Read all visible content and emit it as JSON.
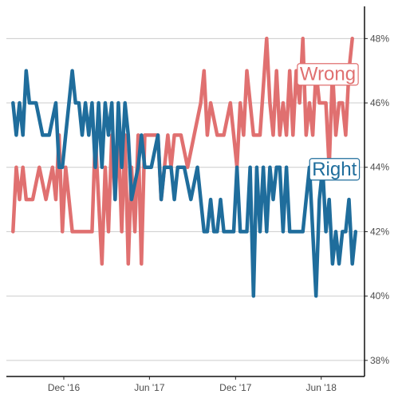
{
  "chart_data": {
    "type": "line",
    "y_axis_position": "right",
    "ylim": [
      37.5,
      49
    ],
    "y_ticks": [
      {
        "value": 38,
        "label": "38%"
      },
      {
        "value": 40,
        "label": "40%"
      },
      {
        "value": 42,
        "label": "42%"
      },
      {
        "value": 44,
        "label": "44%"
      },
      {
        "value": 46,
        "label": "46%"
      },
      {
        "value": 48,
        "label": "48%"
      }
    ],
    "x_range": [
      "2016-08-01",
      "2018-09-01"
    ],
    "x_ticks": [
      {
        "date": "2016-12-01",
        "label": "Dec '16"
      },
      {
        "date": "2017-06-01",
        "label": "Jun '17"
      },
      {
        "date": "2017-12-01",
        "label": "Dec '17"
      },
      {
        "date": "2018-06-01",
        "label": "Jun '18"
      }
    ],
    "grid": "horizontal",
    "legend": "direct labels",
    "series": [
      {
        "name": "Wrong",
        "color": "#e07070",
        "label_date": "2018-06-15",
        "label_value": 46.9,
        "points": [
          [
            "2016-08-15",
            42
          ],
          [
            "2016-08-22",
            44
          ],
          [
            "2016-08-29",
            43
          ],
          [
            "2016-09-05",
            44
          ],
          [
            "2016-09-12",
            43
          ],
          [
            "2016-09-26",
            43
          ],
          [
            "2016-10-10",
            44
          ],
          [
            "2016-10-24",
            43
          ],
          [
            "2016-11-07",
            44
          ],
          [
            "2016-11-14",
            43
          ],
          [
            "2016-11-21",
            45
          ],
          [
            "2016-11-28",
            42
          ],
          [
            "2016-12-05",
            44
          ],
          [
            "2016-12-12",
            43
          ],
          [
            "2016-12-19",
            42
          ],
          [
            "2017-01-02",
            42
          ],
          [
            "2017-01-16",
            42
          ],
          [
            "2017-01-30",
            42
          ],
          [
            "2017-02-06",
            45
          ],
          [
            "2017-02-13",
            43
          ],
          [
            "2017-02-20",
            41
          ],
          [
            "2017-02-27",
            44
          ],
          [
            "2017-03-06",
            42
          ],
          [
            "2017-03-13",
            45
          ],
          [
            "2017-03-20",
            43
          ],
          [
            "2017-03-27",
            45
          ],
          [
            "2017-04-03",
            42
          ],
          [
            "2017-04-10",
            45
          ],
          [
            "2017-04-17",
            41
          ],
          [
            "2017-04-24",
            44
          ],
          [
            "2017-05-01",
            42
          ],
          [
            "2017-05-08",
            45
          ],
          [
            "2017-05-15",
            41
          ],
          [
            "2017-05-22",
            45
          ],
          [
            "2017-06-05",
            45
          ],
          [
            "2017-06-19",
            45
          ],
          [
            "2017-06-26",
            43
          ],
          [
            "2017-07-03",
            44
          ],
          [
            "2017-07-10",
            45
          ],
          [
            "2017-07-17",
            44
          ],
          [
            "2017-07-24",
            45
          ],
          [
            "2017-08-07",
            45
          ],
          [
            "2017-08-21",
            44
          ],
          [
            "2017-09-04",
            45
          ],
          [
            "2017-09-18",
            46
          ],
          [
            "2017-09-25",
            47
          ],
          [
            "2017-10-02",
            45
          ],
          [
            "2017-10-09",
            46
          ],
          [
            "2017-10-23",
            45
          ],
          [
            "2017-11-06",
            45
          ],
          [
            "2017-11-20",
            46
          ],
          [
            "2017-11-27",
            45
          ],
          [
            "2017-12-04",
            44
          ],
          [
            "2017-12-11",
            46
          ],
          [
            "2017-12-18",
            45
          ],
          [
            "2017-12-25",
            47
          ],
          [
            "2018-01-08",
            45
          ],
          [
            "2018-01-22",
            45
          ],
          [
            "2018-02-05",
            48
          ],
          [
            "2018-02-12",
            46
          ],
          [
            "2018-02-19",
            45
          ],
          [
            "2018-02-26",
            47
          ],
          [
            "2018-03-05",
            45
          ],
          [
            "2018-03-12",
            46
          ],
          [
            "2018-03-19",
            45
          ],
          [
            "2018-03-26",
            47
          ],
          [
            "2018-04-02",
            45
          ],
          [
            "2018-04-09",
            47
          ],
          [
            "2018-04-16",
            46
          ],
          [
            "2018-04-23",
            48
          ],
          [
            "2018-04-30",
            45
          ],
          [
            "2018-05-07",
            46
          ],
          [
            "2018-05-14",
            45
          ],
          [
            "2018-05-21",
            47
          ],
          [
            "2018-05-28",
            46
          ],
          [
            "2018-06-11",
            46
          ],
          [
            "2018-06-18",
            44
          ],
          [
            "2018-06-25",
            47
          ],
          [
            "2018-07-02",
            45
          ],
          [
            "2018-07-09",
            46
          ],
          [
            "2018-07-16",
            46
          ],
          [
            "2018-07-23",
            45
          ],
          [
            "2018-07-30",
            47
          ],
          [
            "2018-08-06",
            48
          ]
        ]
      },
      {
        "name": "Right",
        "color": "#1f6d9c",
        "label_date": "2018-06-29",
        "label_value": 43.95,
        "points": [
          [
            "2016-08-15",
            46
          ],
          [
            "2016-08-22",
            45
          ],
          [
            "2016-08-29",
            46
          ],
          [
            "2016-09-05",
            45
          ],
          [
            "2016-09-12",
            47
          ],
          [
            "2016-09-19",
            46
          ],
          [
            "2016-10-03",
            46
          ],
          [
            "2016-10-17",
            45
          ],
          [
            "2016-10-31",
            45
          ],
          [
            "2016-11-14",
            46
          ],
          [
            "2016-11-21",
            44
          ],
          [
            "2016-11-28",
            44
          ],
          [
            "2016-12-05",
            45
          ],
          [
            "2016-12-12",
            46
          ],
          [
            "2016-12-19",
            47
          ],
          [
            "2016-12-26",
            46
          ],
          [
            "2017-01-02",
            46
          ],
          [
            "2017-01-09",
            45
          ],
          [
            "2017-01-16",
            46
          ],
          [
            "2017-01-23",
            45
          ],
          [
            "2017-01-30",
            46
          ],
          [
            "2017-02-06",
            44
          ],
          [
            "2017-02-13",
            46
          ],
          [
            "2017-02-20",
            44
          ],
          [
            "2017-02-27",
            46
          ],
          [
            "2017-03-06",
            45
          ],
          [
            "2017-03-13",
            46
          ],
          [
            "2017-03-20",
            43
          ],
          [
            "2017-03-27",
            46
          ],
          [
            "2017-04-03",
            44
          ],
          [
            "2017-04-10",
            46
          ],
          [
            "2017-04-17",
            45
          ],
          [
            "2017-04-24",
            43
          ],
          [
            "2017-05-08",
            44
          ],
          [
            "2017-05-15",
            45
          ],
          [
            "2017-05-22",
            44
          ],
          [
            "2017-06-05",
            44
          ],
          [
            "2017-06-19",
            45
          ],
          [
            "2017-06-26",
            43
          ],
          [
            "2017-07-03",
            44
          ],
          [
            "2017-07-17",
            44
          ],
          [
            "2017-07-24",
            43
          ],
          [
            "2017-07-31",
            44
          ],
          [
            "2017-08-14",
            44
          ],
          [
            "2017-08-28",
            43
          ],
          [
            "2017-09-11",
            44
          ],
          [
            "2017-09-25",
            42
          ],
          [
            "2017-10-02",
            42
          ],
          [
            "2017-10-09",
            43
          ],
          [
            "2017-10-16",
            42
          ],
          [
            "2017-10-23",
            42
          ],
          [
            "2017-10-30",
            43
          ],
          [
            "2017-11-06",
            42
          ],
          [
            "2017-11-13",
            42
          ],
          [
            "2017-11-27",
            42
          ],
          [
            "2017-12-04",
            44
          ],
          [
            "2017-12-11",
            42
          ],
          [
            "2017-12-18",
            42
          ],
          [
            "2017-12-25",
            42
          ],
          [
            "2018-01-01",
            44
          ],
          [
            "2018-01-08",
            40
          ],
          [
            "2018-01-15",
            44
          ],
          [
            "2018-01-22",
            42
          ],
          [
            "2018-01-29",
            44
          ],
          [
            "2018-02-05",
            42
          ],
          [
            "2018-02-12",
            44
          ],
          [
            "2018-02-19",
            43
          ],
          [
            "2018-02-26",
            44
          ],
          [
            "2018-03-05",
            44
          ],
          [
            "2018-03-12",
            42
          ],
          [
            "2018-03-19",
            44
          ],
          [
            "2018-03-26",
            42
          ],
          [
            "2018-04-09",
            42
          ],
          [
            "2018-04-23",
            42
          ],
          [
            "2018-04-30",
            43
          ],
          [
            "2018-05-07",
            44
          ],
          [
            "2018-05-14",
            42
          ],
          [
            "2018-05-21",
            40
          ],
          [
            "2018-05-28",
            43
          ],
          [
            "2018-06-04",
            44
          ],
          [
            "2018-06-11",
            42
          ],
          [
            "2018-06-18",
            43
          ],
          [
            "2018-06-25",
            41
          ],
          [
            "2018-07-02",
            42
          ],
          [
            "2018-07-09",
            41
          ],
          [
            "2018-07-16",
            42
          ],
          [
            "2018-07-23",
            42
          ],
          [
            "2018-07-30",
            43
          ],
          [
            "2018-08-06",
            41
          ],
          [
            "2018-08-13",
            42
          ]
        ]
      }
    ]
  }
}
